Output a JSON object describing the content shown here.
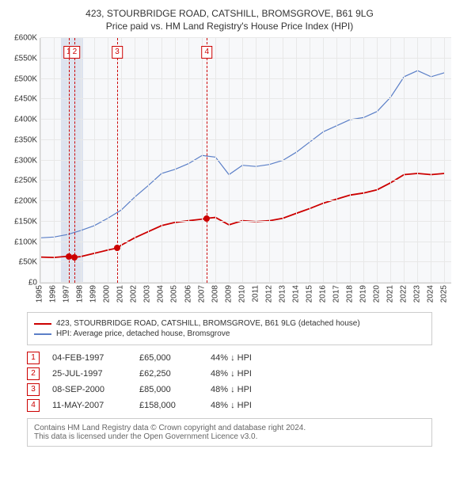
{
  "title": "423, STOURBRIDGE ROAD, CATSHILL, BROMSGROVE, B61 9LG",
  "subtitle": "Price paid vs. HM Land Registry's House Price Index (HPI)",
  "chart": {
    "type": "line",
    "background_color": "#f7f8fa",
    "grid_color": "#e8e8e8",
    "border_color": "#cccccc",
    "label_fontsize": 10,
    "y": {
      "min": 0,
      "max": 600000,
      "ticks": [
        {
          "v": 0,
          "label": "£0"
        },
        {
          "v": 50000,
          "label": "£50K"
        },
        {
          "v": 100000,
          "label": "£100K"
        },
        {
          "v": 150000,
          "label": "£150K"
        },
        {
          "v": 200000,
          "label": "£200K"
        },
        {
          "v": 250000,
          "label": "£250K"
        },
        {
          "v": 300000,
          "label": "£300K"
        },
        {
          "v": 350000,
          "label": "£350K"
        },
        {
          "v": 400000,
          "label": "£400K"
        },
        {
          "v": 450000,
          "label": "£450K"
        },
        {
          "v": 500000,
          "label": "£500K"
        },
        {
          "v": 550000,
          "label": "£550K"
        },
        {
          "v": 600000,
          "label": "£600K"
        }
      ]
    },
    "x": {
      "min": 1995,
      "max": 2025.5,
      "ticks": [
        {
          "v": 1995,
          "label": "1995"
        },
        {
          "v": 1996,
          "label": "1996"
        },
        {
          "v": 1997,
          "label": "1997"
        },
        {
          "v": 1998,
          "label": "1998"
        },
        {
          "v": 1999,
          "label": "1999"
        },
        {
          "v": 2000,
          "label": "2000"
        },
        {
          "v": 2001,
          "label": "2001"
        },
        {
          "v": 2002,
          "label": "2002"
        },
        {
          "v": 2003,
          "label": "2003"
        },
        {
          "v": 2004,
          "label": "2004"
        },
        {
          "v": 2005,
          "label": "2005"
        },
        {
          "v": 2006,
          "label": "2006"
        },
        {
          "v": 2007,
          "label": "2007"
        },
        {
          "v": 2008,
          "label": "2008"
        },
        {
          "v": 2009,
          "label": "2009"
        },
        {
          "v": 2010,
          "label": "2010"
        },
        {
          "v": 2011,
          "label": "2011"
        },
        {
          "v": 2012,
          "label": "2012"
        },
        {
          "v": 2013,
          "label": "2013"
        },
        {
          "v": 2014,
          "label": "2014"
        },
        {
          "v": 2015,
          "label": "2015"
        },
        {
          "v": 2016,
          "label": "2016"
        },
        {
          "v": 2017,
          "label": "2017"
        },
        {
          "v": 2018,
          "label": "2018"
        },
        {
          "v": 2019,
          "label": "2019"
        },
        {
          "v": 2020,
          "label": "2020"
        },
        {
          "v": 2021,
          "label": "2021"
        },
        {
          "v": 2022,
          "label": "2022"
        },
        {
          "v": 2023,
          "label": "2023"
        },
        {
          "v": 2024,
          "label": "2024"
        },
        {
          "v": 2025,
          "label": "2025"
        }
      ]
    },
    "shaded_bands": [
      {
        "from": 1996.5,
        "to": 1998.2,
        "color": "rgba(76,110,180,0.15)"
      }
    ],
    "callouts": [
      {
        "at": 1997.1,
        "label": "1"
      },
      {
        "at": 1997.55,
        "label": "2"
      },
      {
        "at": 2000.7,
        "label": "3"
      },
      {
        "at": 2007.36,
        "label": "4"
      }
    ],
    "series": [
      {
        "id": "price_paid",
        "name": "423, STOURBRIDGE ROAD, CATSHILL, BROMSGROVE, B61 9LG (detached house)",
        "color": "#cc0000",
        "line_width": 1.8,
        "points": [
          {
            "x": 1995.0,
            "y": 63000
          },
          {
            "x": 1996.0,
            "y": 62000
          },
          {
            "x": 1997.1,
            "y": 65000
          },
          {
            "x": 1997.55,
            "y": 62250
          },
          {
            "x": 1998.0,
            "y": 64000
          },
          {
            "x": 1999.0,
            "y": 72000
          },
          {
            "x": 2000.0,
            "y": 80000
          },
          {
            "x": 2000.7,
            "y": 85000
          },
          {
            "x": 2001.0,
            "y": 92000
          },
          {
            "x": 2002.0,
            "y": 110000
          },
          {
            "x": 2003.0,
            "y": 125000
          },
          {
            "x": 2004.0,
            "y": 140000
          },
          {
            "x": 2005.0,
            "y": 148000
          },
          {
            "x": 2006.0,
            "y": 152000
          },
          {
            "x": 2007.0,
            "y": 156000
          },
          {
            "x": 2007.36,
            "y": 158000
          },
          {
            "x": 2008.0,
            "y": 160000
          },
          {
            "x": 2009.0,
            "y": 142000
          },
          {
            "x": 2010.0,
            "y": 152000
          },
          {
            "x": 2011.0,
            "y": 150000
          },
          {
            "x": 2012.0,
            "y": 152000
          },
          {
            "x": 2013.0,
            "y": 158000
          },
          {
            "x": 2014.0,
            "y": 170000
          },
          {
            "x": 2015.0,
            "y": 182000
          },
          {
            "x": 2016.0,
            "y": 195000
          },
          {
            "x": 2017.0,
            "y": 205000
          },
          {
            "x": 2018.0,
            "y": 215000
          },
          {
            "x": 2019.0,
            "y": 220000
          },
          {
            "x": 2020.0,
            "y": 228000
          },
          {
            "x": 2021.0,
            "y": 245000
          },
          {
            "x": 2022.0,
            "y": 265000
          },
          {
            "x": 2023.0,
            "y": 268000
          },
          {
            "x": 2024.0,
            "y": 265000
          },
          {
            "x": 2025.0,
            "y": 268000
          }
        ],
        "markers_at": [
          {
            "x": 1997.1,
            "y": 65000
          },
          {
            "x": 1997.55,
            "y": 62250
          },
          {
            "x": 2000.7,
            "y": 85000
          },
          {
            "x": 2007.36,
            "y": 158000
          }
        ]
      },
      {
        "id": "hpi",
        "name": "HPI: Average price, detached house, Bromsgrove",
        "color": "#5b7fc7",
        "line_width": 1.2,
        "points": [
          {
            "x": 1995.0,
            "y": 110000
          },
          {
            "x": 1996.0,
            "y": 112000
          },
          {
            "x": 1997.0,
            "y": 118000
          },
          {
            "x": 1998.0,
            "y": 128000
          },
          {
            "x": 1999.0,
            "y": 140000
          },
          {
            "x": 2000.0,
            "y": 158000
          },
          {
            "x": 2001.0,
            "y": 178000
          },
          {
            "x": 2002.0,
            "y": 210000
          },
          {
            "x": 2003.0,
            "y": 238000
          },
          {
            "x": 2004.0,
            "y": 268000
          },
          {
            "x": 2005.0,
            "y": 278000
          },
          {
            "x": 2006.0,
            "y": 292000
          },
          {
            "x": 2007.0,
            "y": 312000
          },
          {
            "x": 2008.0,
            "y": 308000
          },
          {
            "x": 2009.0,
            "y": 265000
          },
          {
            "x": 2010.0,
            "y": 288000
          },
          {
            "x": 2011.0,
            "y": 285000
          },
          {
            "x": 2012.0,
            "y": 290000
          },
          {
            "x": 2013.0,
            "y": 300000
          },
          {
            "x": 2014.0,
            "y": 320000
          },
          {
            "x": 2015.0,
            "y": 345000
          },
          {
            "x": 2016.0,
            "y": 370000
          },
          {
            "x": 2017.0,
            "y": 385000
          },
          {
            "x": 2018.0,
            "y": 400000
          },
          {
            "x": 2019.0,
            "y": 405000
          },
          {
            "x": 2020.0,
            "y": 420000
          },
          {
            "x": 2021.0,
            "y": 455000
          },
          {
            "x": 2022.0,
            "y": 505000
          },
          {
            "x": 2023.0,
            "y": 520000
          },
          {
            "x": 2024.0,
            "y": 505000
          },
          {
            "x": 2025.0,
            "y": 515000
          }
        ]
      }
    ]
  },
  "legend": [
    {
      "color": "#cc0000",
      "label": "423, STOURBRIDGE ROAD, CATSHILL, BROMSGROVE, B61 9LG (detached house)"
    },
    {
      "color": "#5b7fc7",
      "label": "HPI: Average price, detached house, Bromsgrove"
    }
  ],
  "sales": [
    {
      "idx": "1",
      "date": "04-FEB-1997",
      "price": "£65,000",
      "diff": "44% ↓ HPI"
    },
    {
      "idx": "2",
      "date": "25-JUL-1997",
      "price": "£62,250",
      "diff": "48% ↓ HPI"
    },
    {
      "idx": "3",
      "date": "08-SEP-2000",
      "price": "£85,000",
      "diff": "48% ↓ HPI"
    },
    {
      "idx": "4",
      "date": "11-MAY-2007",
      "price": "£158,000",
      "diff": "48% ↓ HPI"
    }
  ],
  "footer": {
    "line1": "Contains HM Land Registry data © Crown copyright and database right 2024.",
    "line2": "This data is licensed under the Open Government Licence v3.0."
  }
}
